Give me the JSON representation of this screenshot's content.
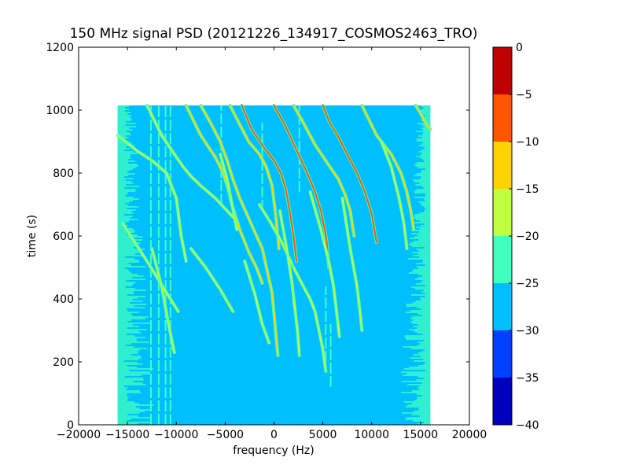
{
  "chart_data": {
    "type": "heatmap",
    "title": "150 MHz signal PSD (20121226_134917_COSMOS2463_TRO)",
    "xlabel": "frequency (Hz)",
    "ylabel": "time (s)",
    "xlim": [
      -20000,
      20000
    ],
    "ylim": [
      0,
      1200
    ],
    "x_ticks": [
      -20000,
      -15000,
      -10000,
      -5000,
      0,
      5000,
      10000,
      15000,
      20000
    ],
    "x_tick_labels": [
      "−20000",
      "−15000",
      "−10000",
      "−5000",
      "0",
      "5000",
      "10000",
      "15000",
      "20000"
    ],
    "y_ticks": [
      0,
      200,
      400,
      600,
      800,
      1000,
      1200
    ],
    "y_tick_labels": [
      "0",
      "200",
      "400",
      "600",
      "800",
      "1000",
      "1200"
    ],
    "data_extent": {
      "x": [
        -16000,
        16000
      ],
      "y": [
        0,
        1015
      ]
    },
    "background_level_db": -27.5,
    "edge_band_level_db": -22.5,
    "colorbar": {
      "levels": [
        -40,
        -35,
        -30,
        -25,
        -20,
        -15,
        -10,
        -5,
        0
      ],
      "tick_labels": [
        "−40",
        "−35",
        "−30",
        "−25",
        "−20",
        "−15",
        "−10",
        "−5",
        "0"
      ],
      "colors": [
        "#0000bf",
        "#0040ff",
        "#00bfff",
        "#40ffbf",
        "#bfff40",
        "#ffd200",
        "#ff5500",
        "#bf0000"
      ]
    },
    "grid": false,
    "legend": "none",
    "traces": [
      {
        "name": "",
        "level_db": -17,
        "x": [
          -16000,
          -14000,
          -12500,
          -11000,
          -10000,
          -9500,
          -9000
        ],
        "y": [
          920,
          870,
          840,
          800,
          720,
          600,
          520
        ]
      },
      {
        "name": "",
        "level_db": -17,
        "x": [
          -13000,
          -11500,
          -10200,
          -9300,
          -8500,
          -7500,
          -6000,
          -4200
        ],
        "y": [
          1015,
          920,
          860,
          820,
          790,
          760,
          720,
          660
        ]
      },
      {
        "name": "",
        "level_db": -15,
        "x": [
          -9000,
          -7500,
          -6000,
          -5200,
          -4800,
          -4300,
          -3500,
          -2600,
          -1800,
          -1200
        ],
        "y": [
          1015,
          920,
          850,
          800,
          760,
          700,
          620,
          550,
          500,
          450
        ]
      },
      {
        "name": "",
        "level_db": -15,
        "x": [
          -7500,
          -6500,
          -5500,
          -4800,
          -4200,
          -3500,
          -2500,
          -1200,
          -200,
          400
        ],
        "y": [
          1015,
          960,
          900,
          840,
          780,
          720,
          650,
          560,
          420,
          220
        ]
      },
      {
        "name": "",
        "level_db": -12,
        "x": [
          -4500,
          -3600,
          -2600,
          -1500,
          -800,
          -200,
          200,
          400,
          500
        ],
        "y": [
          1015,
          960,
          900,
          860,
          820,
          760,
          660,
          600,
          560
        ]
      },
      {
        "name": "",
        "level_db": -10,
        "x": [
          -3300,
          -2300,
          -1000,
          0,
          700,
          1200,
          1600,
          2000,
          2300
        ],
        "y": [
          1015,
          940,
          880,
          840,
          800,
          750,
          680,
          600,
          520
        ]
      },
      {
        "name": "",
        "level_db": -10,
        "x": [
          0,
          1000,
          2200,
          3400,
          4200,
          4800,
          5200,
          5400,
          5600
        ],
        "y": [
          1015,
          960,
          880,
          800,
          740,
          680,
          620,
          580,
          500
        ]
      },
      {
        "name": "",
        "level_db": -12,
        "x": [
          2000,
          3000,
          4200,
          5500,
          6600,
          7300,
          7800,
          8200
        ],
        "y": [
          1015,
          960,
          890,
          830,
          780,
          730,
          680,
          600
        ]
      },
      {
        "name": "",
        "level_db": -10,
        "x": [
          5000,
          5700,
          6500,
          7500,
          8500,
          9300,
          10000,
          10500
        ],
        "y": [
          1015,
          960,
          920,
          860,
          800,
          740,
          670,
          580
        ]
      },
      {
        "name": "",
        "level_db": -15,
        "x": [
          9000,
          10500,
          12000,
          13000,
          13600,
          14000,
          14300
        ],
        "y": [
          1015,
          920,
          860,
          800,
          740,
          680,
          620
        ]
      },
      {
        "name": "",
        "level_db": -15,
        "x": [
          14500,
          15000,
          15500,
          16000
        ],
        "y": [
          1015,
          990,
          960,
          940
        ]
      },
      {
        "name": "",
        "level_db": -18,
        "x": [
          -1500,
          -300,
          800,
          2000,
          3000,
          3700,
          4200,
          4600,
          5000,
          5300
        ],
        "y": [
          700,
          640,
          580,
          500,
          440,
          400,
          360,
          300,
          240,
          170
        ]
      },
      {
        "name": "",
        "level_db": -20,
        "x": [
          600,
          1300,
          1800,
          2100,
          2400,
          2600
        ],
        "y": [
          680,
          560,
          460,
          380,
          300,
          220
        ]
      },
      {
        "name": "",
        "level_db": -20,
        "x": [
          3700,
          4800,
          5600,
          6100,
          6400,
          6700
        ],
        "y": [
          740,
          620,
          520,
          440,
          360,
          280
        ]
      },
      {
        "name": "",
        "level_db": -20,
        "x": [
          7000,
          7800,
          8500,
          8800,
          9000
        ],
        "y": [
          720,
          560,
          440,
          360,
          300
        ]
      },
      {
        "name": "",
        "level_db": -20,
        "x": [
          11000,
          12000,
          12800,
          13300,
          13600
        ],
        "y": [
          900,
          820,
          720,
          640,
          560
        ]
      },
      {
        "name": "",
        "level_db": -20,
        "x": [
          -15500,
          -13000,
          -11000,
          -9800
        ],
        "y": [
          640,
          520,
          420,
          360
        ]
      },
      {
        "name": "",
        "level_db": -20,
        "x": [
          -12500,
          -11500,
          -10800,
          -10200
        ],
        "y": [
          560,
          440,
          320,
          230
        ]
      },
      {
        "name": "",
        "level_db": -20,
        "x": [
          -8500,
          -7000,
          -5500,
          -4200
        ],
        "y": [
          560,
          500,
          430,
          360
        ]
      },
      {
        "name": "",
        "level_db": -20,
        "x": [
          -3000,
          -2000,
          -1200,
          -500
        ],
        "y": [
          520,
          420,
          320,
          260
        ]
      },
      {
        "name": "",
        "level_db": -20,
        "x": [
          -5500,
          -4800,
          -4300,
          -3800
        ],
        "y": [
          860,
          780,
          700,
          620
        ]
      }
    ],
    "vertical_lines": [
      {
        "name": "",
        "level_db": -22.5,
        "x": -12600,
        "y": [
          0,
          1015
        ]
      },
      {
        "name": "",
        "level_db": -22.5,
        "x": -11800,
        "y": [
          0,
          1015
        ]
      },
      {
        "name": "",
        "level_db": -22.5,
        "x": -11100,
        "y": [
          0,
          1015
        ]
      },
      {
        "name": "",
        "level_db": -22.5,
        "x": -10600,
        "y": [
          0,
          1015
        ]
      },
      {
        "name": "",
        "level_db": -22.5,
        "x": -5400,
        "y": [
          700,
          1015
        ]
      },
      {
        "name": "",
        "level_db": -22.5,
        "x": -1200,
        "y": [
          680,
          960
        ]
      },
      {
        "name": "",
        "level_db": -22.5,
        "x": 2600,
        "y": [
          740,
          1015
        ]
      },
      {
        "name": "",
        "level_db": -22.5,
        "x": 5300,
        "y": [
          200,
          440
        ]
      },
      {
        "name": "",
        "level_db": -22.5,
        "x": 5800,
        "y": [
          120,
          320
        ]
      }
    ]
  }
}
